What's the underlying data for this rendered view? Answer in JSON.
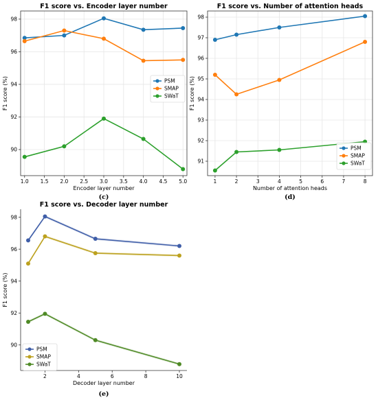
{
  "chart_data": [
    {
      "type": "line",
      "title": "F1 score vs. Encoder layer number",
      "xlabel": "Encoder layer number",
      "ylabel": "F1 score (%)",
      "caption": "(c)",
      "x": [
        1,
        2,
        3,
        4,
        5
      ],
      "xticks": [
        "1.0",
        "1.5",
        "2.0",
        "2.5",
        "3.0",
        "3.5",
        "4.0",
        "4.5",
        "5.0"
      ],
      "yticks": [
        "90",
        "92",
        "94",
        "96",
        "98"
      ],
      "xlim": [
        0.9,
        5.1
      ],
      "ylim": [
        88.4,
        98.5
      ],
      "grid": true,
      "legend_position": "right-middle",
      "series": [
        {
          "name": "PSM",
          "color": "#1f77b4",
          "values": [
            96.85,
            97.0,
            98.05,
            97.35,
            97.45
          ]
        },
        {
          "name": "SMAP",
          "color": "#ff7f0e",
          "values": [
            96.65,
            97.3,
            96.8,
            95.45,
            95.5
          ]
        },
        {
          "name": "SWaT",
          "color": "#2ca02c",
          "values": [
            89.55,
            90.2,
            91.9,
            90.65,
            88.8
          ]
        }
      ]
    },
    {
      "type": "line",
      "title": "F1 score vs. Number of attention heads",
      "xlabel": "Number of attention heads",
      "ylabel": "F1 score (%)",
      "caption": "(d)",
      "x": [
        1,
        2,
        4,
        8
      ],
      "xticks": [
        "1",
        "2",
        "3",
        "4",
        "5",
        "6",
        "7",
        "8"
      ],
      "yticks": [
        "91",
        "92",
        "93",
        "94",
        "95",
        "96",
        "97",
        "98"
      ],
      "xlim": [
        0.65,
        8.35
      ],
      "ylim": [
        90.3,
        98.3
      ],
      "grid": true,
      "legend_position": "bottom-right",
      "series": [
        {
          "name": "PSM",
          "color": "#1f77b4",
          "values": [
            96.9,
            97.15,
            97.5,
            98.05
          ]
        },
        {
          "name": "SMAP",
          "color": "#ff7f0e",
          "values": [
            95.2,
            94.25,
            94.95,
            96.8
          ]
        },
        {
          "name": "SWaT",
          "color": "#2ca02c",
          "values": [
            90.55,
            91.45,
            91.55,
            91.95
          ]
        }
      ]
    },
    {
      "type": "line",
      "title": "F1 score vs. Decoder layer number",
      "xlabel": "Decoder layer number",
      "ylabel": "F1 score (%)",
      "caption": "(e)",
      "x": [
        1,
        2,
        5,
        10
      ],
      "xticks": [
        "2",
        "4",
        "6",
        "8",
        "10"
      ],
      "yticks": [
        "90",
        "92",
        "94",
        "96",
        "98"
      ],
      "xlim": [
        0.55,
        10.45
      ],
      "ylim": [
        88.4,
        98.5
      ],
      "grid": false,
      "legend_position": "bottom-left",
      "series": [
        {
          "name": "PSM",
          "color": "#3f5ea8",
          "values": [
            96.55,
            98.05,
            96.65,
            96.2
          ]
        },
        {
          "name": "SMAP",
          "color": "#bca11f",
          "values": [
            95.1,
            96.8,
            95.75,
            95.6
          ]
        },
        {
          "name": "SWaT",
          "color": "#4f8a26",
          "values": [
            91.45,
            91.95,
            90.3,
            88.8
          ]
        }
      ]
    }
  ]
}
